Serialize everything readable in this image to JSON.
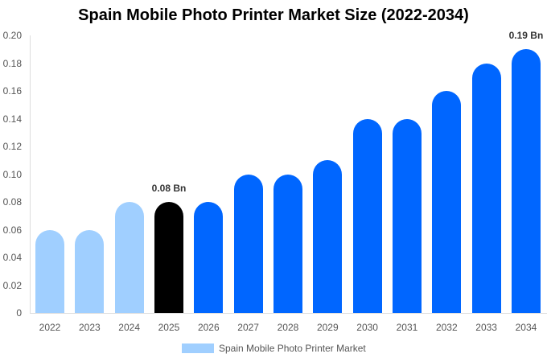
{
  "chart_data": {
    "type": "bar",
    "title": "Spain Mobile Photo Printer Market Size (2022-2034)",
    "xlabel": "",
    "ylabel": "",
    "ylim": [
      0,
      0.2
    ],
    "yticks": [
      "0",
      "0.02",
      "0.04",
      "0.06",
      "0.08",
      "0.10",
      "0.12",
      "0.14",
      "0.16",
      "0.18",
      "0.20"
    ],
    "categories": [
      "2022",
      "2023",
      "2024",
      "2025",
      "2026",
      "2027",
      "2028",
      "2029",
      "2030",
      "2031",
      "2032",
      "2033",
      "2034"
    ],
    "series": [
      {
        "name": "Spain Mobile Photo Printer Market",
        "values": [
          0.06,
          0.06,
          0.08,
          0.08,
          0.08,
          0.1,
          0.1,
          0.11,
          0.14,
          0.14,
          0.16,
          0.18,
          0.19
        ],
        "colors": [
          "#a0cfff",
          "#a0cfff",
          "#a0cfff",
          "#000000",
          "#0066ff",
          "#0066ff",
          "#0066ff",
          "#0066ff",
          "#0066ff",
          "#0066ff",
          "#0066ff",
          "#0066ff",
          "#0066ff"
        ]
      }
    ],
    "annotations": [
      {
        "category": "2025",
        "text": "0.08 Bn"
      },
      {
        "category": "2034",
        "text": "0.19 Bn"
      }
    ],
    "grid": false,
    "legend": {
      "position": "bottom",
      "label": "Spain Mobile Photo Printer Market",
      "color": "#a0cfff"
    }
  }
}
